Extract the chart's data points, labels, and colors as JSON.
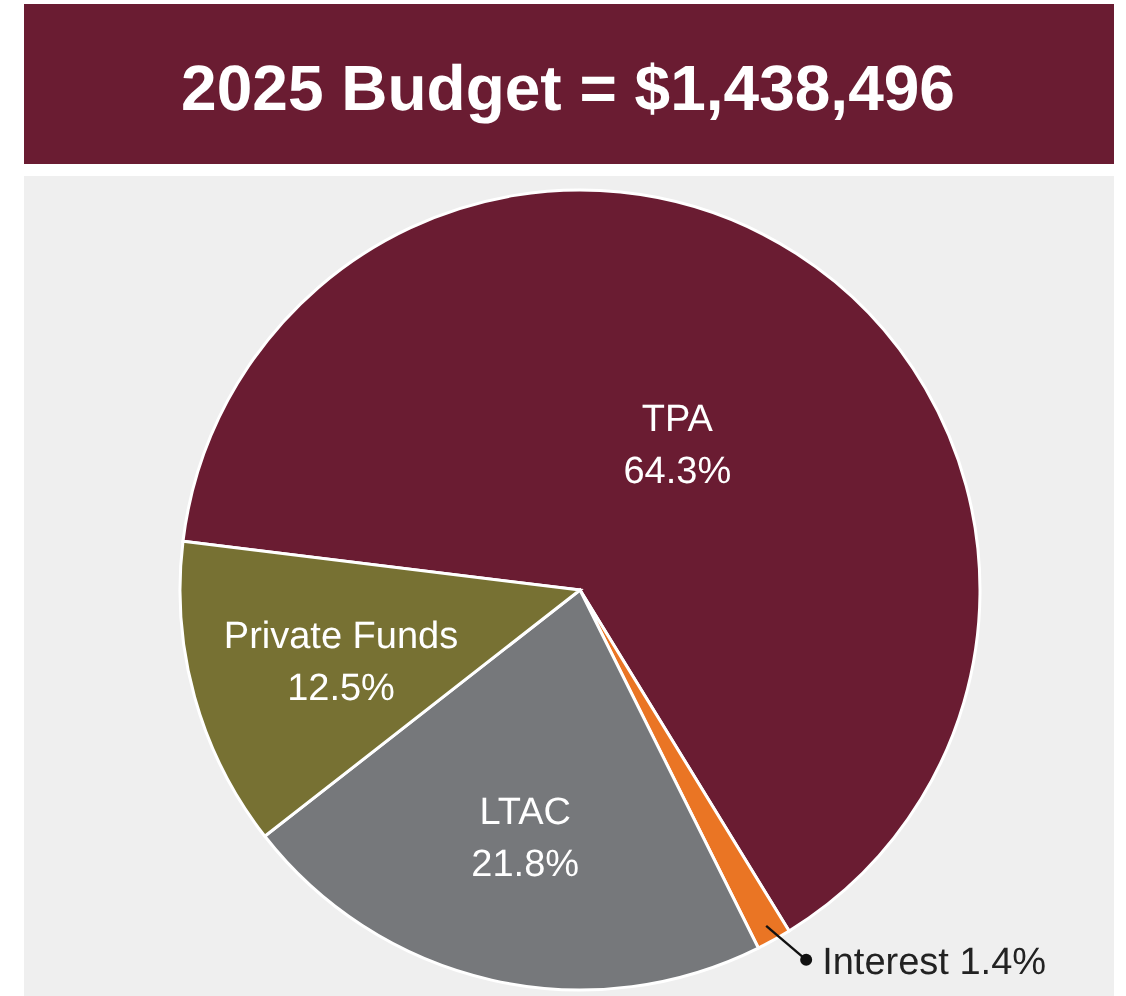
{
  "chart_data": {
    "type": "pie",
    "title": "2025 Budget = $1,438,496",
    "categories": [
      "TPA",
      "Interest",
      "LTAC",
      "Private Funds"
    ],
    "values": [
      64.3,
      1.4,
      21.8,
      12.5
    ],
    "colors": [
      "#6a1c32",
      "#ea7524",
      "#76787b",
      "#777133"
    ],
    "value_labels": [
      "64.3%",
      "1.4%",
      "21.8%",
      "12.5%"
    ]
  }
}
